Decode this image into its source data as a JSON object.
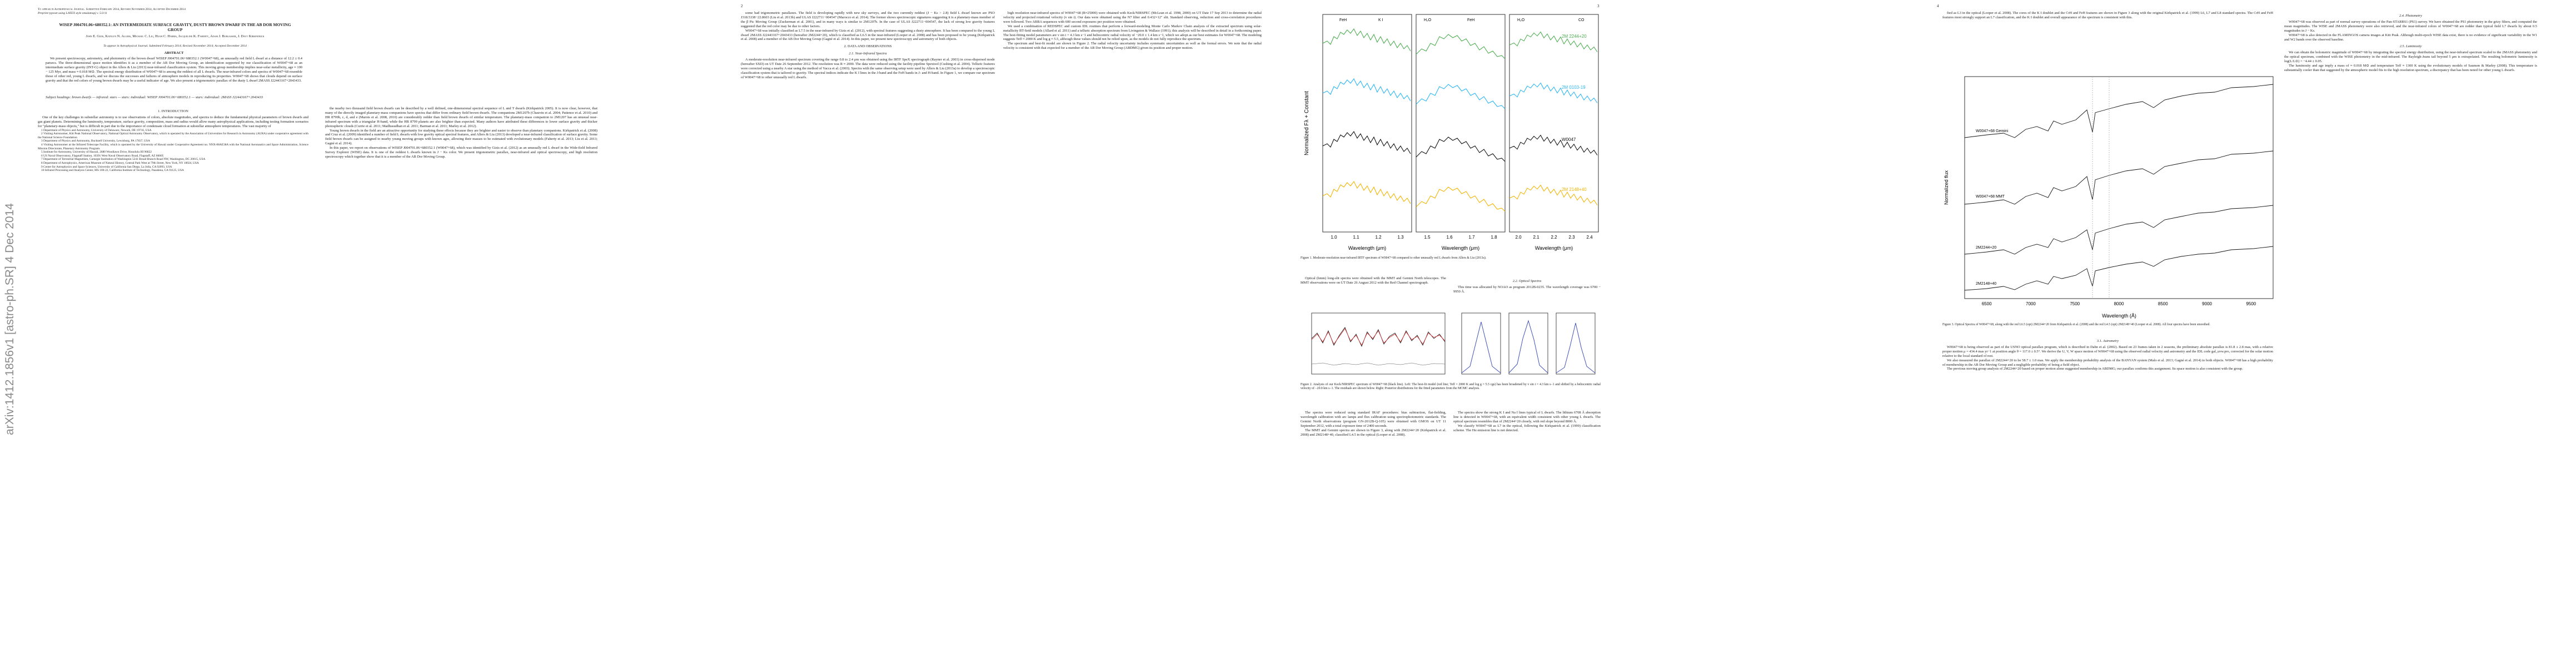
{
  "pages": [
    {
      "arxiv_stamp": "arXiv:1412.1856v1 [astro-ph.SR] 4 Dec 2014",
      "running_head": "To appear in Astrophysical Journal. Submitted February 2014, Revised November 2014, Accepted December 2014",
      "preprint_note": "Preprint typeset using LATEX style emulateapj v. 5/2/11",
      "title": "WISEP J004701.06+680352.1: AN INTERMEDIATE SURFACE GRAVITY, DUSTY BROWN DWARF IN THE AB DOR MOVING GROUP",
      "authors": "John E. Gizis, Katelyn N. Allers, Michael C. Liu, Hugh C. Harris, Jacqueline K. Faherty, Adam J. Burgasser, J. Davy Kirkpatrick",
      "journal_note": "To appear in Astrophysical Journal. Submitted February 2014; Revised November 2014; Accepted December 2014",
      "abstract_heading": "ABSTRACT",
      "abstract": "We present spectroscopy, astrometry, and photometry of the brown dwarf WISEP J004701.06+680352.1 (W0047+68), an unusually red field L dwarf at a distance of 12.2 ± 0.4 parsecs. The three-dimensional space motion identifies it as a member of the AB Dor Moving Group, an identification supported by our classification of W0047+68 as an intermediate surface gravity (INT-G) object in the Allers & Liu (2013) near-infrared classification system. This moving group membership implies near-solar metallicity, age ≈ 100 − 125 Myr, and mass ≈ 0.018 M⊙. The spectral energy distribution of W0047+68 is among the reddest of all L dwarfs. The near-infrared colors and spectra of W0047+68 resemble those of other red, young L dwarfs, and we discuss the successes and failures of atmosphere models in reproducing its properties. W0047+68 shows that clouds depend on surface gravity and that the red colors of young brown dwarfs may be a useful indicator of age. We also present a trigonometric parallax of the dusty L dwarf 2MASS J22443167+2043433.",
      "keywords": "Subject headings: brown dwarfs — infrared: stars — stars: individual: WISEP J004701.06+680352.1 — stars: individual: 2MASS J22443167+2043433",
      "columns": [
        [
          {
            "heading": "1. INTRODUCTION"
          },
          {
            "text": "One of the key challenges in substellar astronomy is to use observations of colors, absolute magnitudes, and spectra to deduce the fundamental physical parameters of brown dwarfs and gas giant planets. Determining the luminosity, temperature, surface gravity, composition, mass and radius would allow many astrophysical applications, including testing formation scenarios for \"planetary-mass objects,\" but is difficult in part due to the importance of condensate cloud formation at substellar atmosphere temperatures. The vast majority of"
          },
          {
            "footnote": "1 Department of Physics and Astronomy, University of Delaware, Newark, DE 19716, USA"
          },
          {
            "footnote": "2 Visiting Astronomer, Kitt Peak National Observatory, National Optical Astronomy Observatory, which is operated by the Association of Universities for Research in Astronomy (AURA) under cooperative agreement with the National Science Foundation."
          },
          {
            "footnote": "3 Department of Physics and Astronomy, Bucknell University, Lewisburg, PA 17837, USA"
          },
          {
            "footnote": "4 Visiting Astronomer at the Infrared Telescope Facility, which is operated by the University of Hawaii under Cooperative Agreement no. NNX-08AE38A with the National Aeronautics and Space Administration, Science Mission Directorate, Planetary Astronomy Program."
          },
          {
            "footnote": "5 Institute for Astronomy, University of Hawaii, 2680 Woodlawn Drive, Honolulu HI 96822"
          },
          {
            "footnote": "6 US Naval Observatory, Flagstaff Station, 10391 West Naval Observatory Road, Flagstaff, AZ 86005"
          },
          {
            "footnote": "7 Department of Terrestrial Magnetism, Carnegie Institution of Washington 5241 Broad Branch Road NW, Washington, DC 20015, USA"
          },
          {
            "footnote": "8 Department of Astrophysics, American Museum of Natural History, Central Park West at 79th Street, New York, NY 10024, USA"
          },
          {
            "footnote": "9 Center for Astrophysics and Space Sciences, University of California San Diego, La Jolla, CA 92093, USA"
          },
          {
            "footnote": "10 Infrared Processing and Analysis Center, MS 100-22, California Institute of Technology, Pasadena, CA 91125, USA"
          }
        ],
        [
          {
            "text": "the nearby two thousand field brown dwarfs can be described by a well defined, one-dimensional spectral sequence of L and T dwarfs (Kirkpatrick 2005). It is now clear, however, that many of the directly imaged planetary-mass companions have spectra that differ from ordinary field brown dwarfs. The companions 2M1207b (Chauvin et al. 2004; Patience et al. 2010) and HR 8799b, c, d, and e (Marois et al. 2008, 2010) are considerably redder than field brown dwarfs of similar temperature. The planetary-mass companion to 2M1207 has an unusual near-infrared spectrum with a triangular H-band, while the HR 8799 planets are also brighter than expected. Many authors have attributed these differences to lower surface gravity and thicker photospheric clouds (Currie et al. 2011; Madhusudhan et al. 2011; Barman et al. 2011; Marley et al. 2012)."
          },
          {
            "text": "Young brown dwarfs in the field are an attractive opportunity for studying these effects because they are brighter and easier to observe than planetary companions. Kirkpatrick et al. (2008) and Cruz et al. (2009) identified a number of field L dwarfs with low gravity optical spectral features, and Allers & Liu (2013) developed a near-infrared classification of surface gravity. Some field brown dwarfs can be assigned to nearby young moving groups with known ages, allowing their masses to be estimated with evolutionary models (Faherty et al. 2013; Liu et al. 2013; Gagné et al. 2014)."
          },
          {
            "text": "In this paper, we report on observations of WISEP J004701.06+680352.1 (W0047+68), which was identified by Gizis et al. (2012) as an unusually red L dwarf in the Wide-field Infrared Survey Explorer (WISE) data. It is one of the reddest L dwarfs known in J − Ks color. We present trigonometric parallax, near-infrared and optical spectroscopy, and high resolution spectroscopy which together show that it is a member of the AB Dor Moving Group."
          }
        ]
      ]
    },
    {
      "page_number": "2",
      "columns": [
        [
          {
            "text": "some had trigonometric parallaxes. The field is developing rapidly with new sky surveys, and the two currently reddest (J − Ks > 2.8) field L dwarf known are PSO J318.5338−22.8603 (Liu et al. 2013b) and ULAS J222711−004547 (Marocco et al. 2014). The former shows spectroscopic signatures suggesting it is a planetary-mass member of the β Pic Moving Group (Zuckerman et al. 2001), and in many ways is similar to 2M1207b. In the case of ULAS J222711−004547, the lack of strong low gravity features suggested that the red color may be due to other factors."
          },
          {
            "text": "W0047+68 was initially classified as L7.5 in the near-infrared by Gizis et al. (2012), with spectral features suggesting a dusty atmosphere. It has been compared to the young L dwarf 2MASS J22443167+2043433 (hereafter 2M2244+20), which is classified as L6.5 in the near-infrared (Looper et al. 2008) and has been proposed to be young (Kirkpatrick et al. 2008) and a member of the AB Dor Moving Group (Gagné et al. 2014). In this paper, we present new spectroscopy and astrometry of both objects."
          },
          {
            "heading": "2. DATA AND OBSERVATIONS"
          },
          {
            "subheading": "2.1. Near-Infrared Spectra"
          },
          {
            "text": "A moderate-resolution near-infrared spectrum covering the range 0.8 to 2.4 μm was obtained using the IRTF SpeX spectrograph (Rayner et al. 2003) in cross-dispersed mode (hereafter SXD) on UT Date 26 September 2012. The resolution was R ≈ 2000. The data were reduced using the facility pipeline Spextool (Cushing et al. 2004). Telluric features were corrected using a nearby A star using the method of Vacca et al. (2003). Spectra with the same observing setup were used by Allers & Liu (2013a) to develop a spectroscopic classification system that is tailored to gravity. The spectral indices indicate the K I lines in the J-band and the FeH bands in J- and H-band. In Figure 1, we compare our spectrum of W0047+68 to other unusually red L dwarfs."
          }
        ],
        [
          {
            "text": "high resolution near-infrared spectra of W0047+68 (R≈25000) were obtained with Keck/NIRSPEC (McLean et al. 1998, 2000) on UT Date 17 Sep 2013 to determine the radial velocity and projected rotational velocity (v sin i). Our data were obtained using the N7 filter and 0.432×12″ slit. Standard observing, reduction and cross-correlation procedures were followed. Two ABBA sequences with 600 second exposures per position were obtained."
          },
          {
            "text": "We used a combination of REDSPEC and custom IDL routines that perform a forward-modeling Monte Carlo Markov Chain analysis of the extracted spectrum using solar-metallicity BT-Settl models (Allard et al. 2011) and a telluric absorption spectrum from Livingston & Wallace (1991); this analysis will be described in detail in a forthcoming paper. The best-fitting model parameters are v sin i = 4.3 km s−1 and heliocentric radial velocity of −20.0 ± 1.4 km s−1, which we adopt as our best estimates for W0047+68. The modeling suggests Teff ≈ 2000 K and log g ≈ 5.5, although these values should not be relied upon, as the models do not fully reproduce the spectrum."
          },
          {
            "text": "The spectrum and best-fit model are shown in Figure 2. The radial velocity uncertainty includes systematic uncertainties as well as the formal errors. We note that the radial velocity is consistent with that expected for a member of the AB Dor Moving Group (ABDMG) given its position and proper motion."
          }
        ]
      ]
    },
    {
      "page_number": "3",
      "figure1": {
        "y_label": "Normalized Fλ + Constant",
        "x_label": "Wavelength (μm)",
        "panel_ticks": [
          [
            "1.0",
            "1.1",
            "1.2",
            "1.3"
          ],
          [
            "1.5",
            "1.6",
            "1.7",
            "1.8"
          ],
          [
            "2.0",
            "2.1",
            "2.2",
            "2.3",
            "2.4"
          ]
        ],
        "features": [
          "FeH",
          "K I",
          "H₂O",
          "FeH",
          "H₂O",
          "CO"
        ],
        "legend": [
          "2M 2244+20",
          "2M 0103-19",
          "W0047",
          "2M 2148+40"
        ],
        "caption": "Figure 1. Moderate-resolution near-infrared IRTF spectrum of W0047+68 compared to other unusually red L dwarfs from Allers & Liu (2013a)."
      },
      "figure2_caption": "Figure 2. Analysis of our Keck/NIRSPEC spectrum of W0047+68 (black line). Left: The best-fit model (red line; Teff = 2000 K and log g = 5.5 cgs) has been broadened by v sin i = 4.3 km s−1 and shifted by a heliocentric radial velocity of −20.0 km s−1. The residuals are shown below. Right: Posterior distributions for the fitted parameters from the MCMC analysis.",
      "columns": [
        [
          {
            "text": "Optical (hmm) long-slit spectra were obtained with the MMT and Gemini North telescopes. The MMT observations were on UT Date 26 August 2012 with the Red Channel spectrograph."
          }
        ],
        [
          {
            "subheading": "2.2. Optical Spectra"
          },
          {
            "text": "This time was allocated by NOAO as program 2012B-0235. The wavelength coverage was 6700 − 9950 Å."
          }
        ],
        [
          {
            "text": "The spectra were reduced using standard IRAF procedures: bias subtraction, flat-fielding, wavelength calibration with arc lamps and flux calibration using spectrophotometric standards. The Gemini North observations (program GN-2012B-Q-105) were obtained with GMOS on UT 11 September 2012, with a total exposure time of 2400 seconds."
          },
          {
            "text": "The MMT and Gemini spectra are shown in Figure 3, along with 2M2244+20 (Kirkpatrick et al. 2008) and 2M2148+40, classified L4.5 in the optical (Looper et al. 2008)."
          }
        ],
        [
          {
            "text": "The spectra show the strong K I and Na I lines typical of L dwarfs. The lithium 6708 Å absorption line is detected in W0047+68, with an equivalent width consistent with other young L dwarfs. The optical spectrum resembles that of 2M2244+20 closely, with red slope beyond 8000 Å."
          },
          {
            "text": "We classify W0047+68 as L7 in the optical, following the Kirkpatrick et al. (1999) classification scheme. The Hα emission line is not detected."
          }
        ]
      ]
    },
    {
      "page_number": "4",
      "figure3": {
        "y_label": "Normalized flux",
        "x_label": "Wavelength (Å)",
        "ticks": [
          "6500",
          "7000",
          "7500",
          "8000",
          "8500",
          "9000",
          "9500"
        ],
        "labels": [
          "W0047+68 Gemini",
          "W0047+68 MMT",
          "2M2244+20",
          "2M2148+40"
        ],
        "caption": "Figure 3. Optical Spectra of W0047+68, along with the red L6.5 (opt) 2M2244+20 from Kirkpatrick et al. (2008) and the red L4.5 (opt) 2M2148+40 (Looper et al. 2008). All four spectra have been smoothed."
      },
      "columns": [
        [
          {
            "text": "fied as L3 in the optical (Looper et al. 2008). The cores of the K I doublet and the CrH and FeH features are shown in Figure 3 along with the original Kirkpatrick et al. (1999) L6, L7 and L8 standard spectra. The CrH and FeH features most strongly support an L7 classification, and the K I doublet and overall appearance of the spectrum is consistent with this."
          }
        ],
        [
          {
            "subheading": "3.1. Astrometry"
          },
          {
            "text": "W0047+68 is being observed as part of the USNO optical parallax program, which is described in Dahn et al. (2002). Based on 23 frames taken in 2 seasons, the preliminary absolute parallax is 81.8 ± 2.8 mas, with a relative proper motion μ = 434.4 mas yr−1 at position angle θ = 117.0 ± 0.5°. We derive the U, V, W space motion of W0047+68 using the observed radial velocity and astrometry and the IDL code gal_uvw.pro, corrected for the solar motion relative to the local standard of rest."
          },
          {
            "text": "We also measured the parallax of 2M2244+20 to be 58.7 ± 1.0 mas. We apply the membership probability analysis of the BANYAN system (Malo et al. 2013; Gagné et al. 2014) to both objects. W0047+68 has a high probability of membership in the AB Dor Moving Group and a negligible probability of being a field object."
          },
          {
            "text": "The previous moving group analysis of 2M2244+20 based on proper motion alone suggested membership in ABDMG; our parallax confirms this assignment. Its space motion is also consistent with the group."
          }
        ],
        [
          {
            "subheading": "2.4. Photometry"
          },
          {
            "text": "W0047+68 was observed as part of normal survey operations of the Pan-STARRS1 (PS1) survey. We have obtained the PS1 photometry in the grizy filters, and computed the mean magnitudes. The WISE and 2MASS photometry were also retrieved, and the near-infrared colors of W0047+68 are redder than typical field L7 dwarfs by about 0.5 magnitudes in J − Ks."
          },
          {
            "text": "W0047+68 is also detected in the FLAMINGOS camera images at Kitt Peak. Although multi-epoch WISE data exist, there is no evidence of significant variability in the W1 and W2 bands over the observed baseline."
          },
          {
            "subheading": "2.5. Luminosity"
          },
          {
            "text": "We can obtain the bolometric magnitude of W0047+68 by integrating the spectral energy distribution, using the near-infrared spectrum scaled to the 2MASS photometry and the optical spectrum, combined with the WISE photometry in the mid-infrared. The Rayleigh-Jeans tail beyond 5 μm is extrapolated. The resulting bolometric luminosity is log(L/L⊙) = −4.44 ± 0.05."
          },
          {
            "text": "The luminosity and age imply a mass of ≈ 0.018 M⊙ and temperature Teff ≈ 1300 K using the evolutionary models of Saumon & Marley (2008). This temperature is substantially cooler than that suggested by the atmospheric model fits to the high resolution spectrum, a discrepancy that has been noted for other young L dwarfs."
          }
        ]
      ]
    }
  ]
}
